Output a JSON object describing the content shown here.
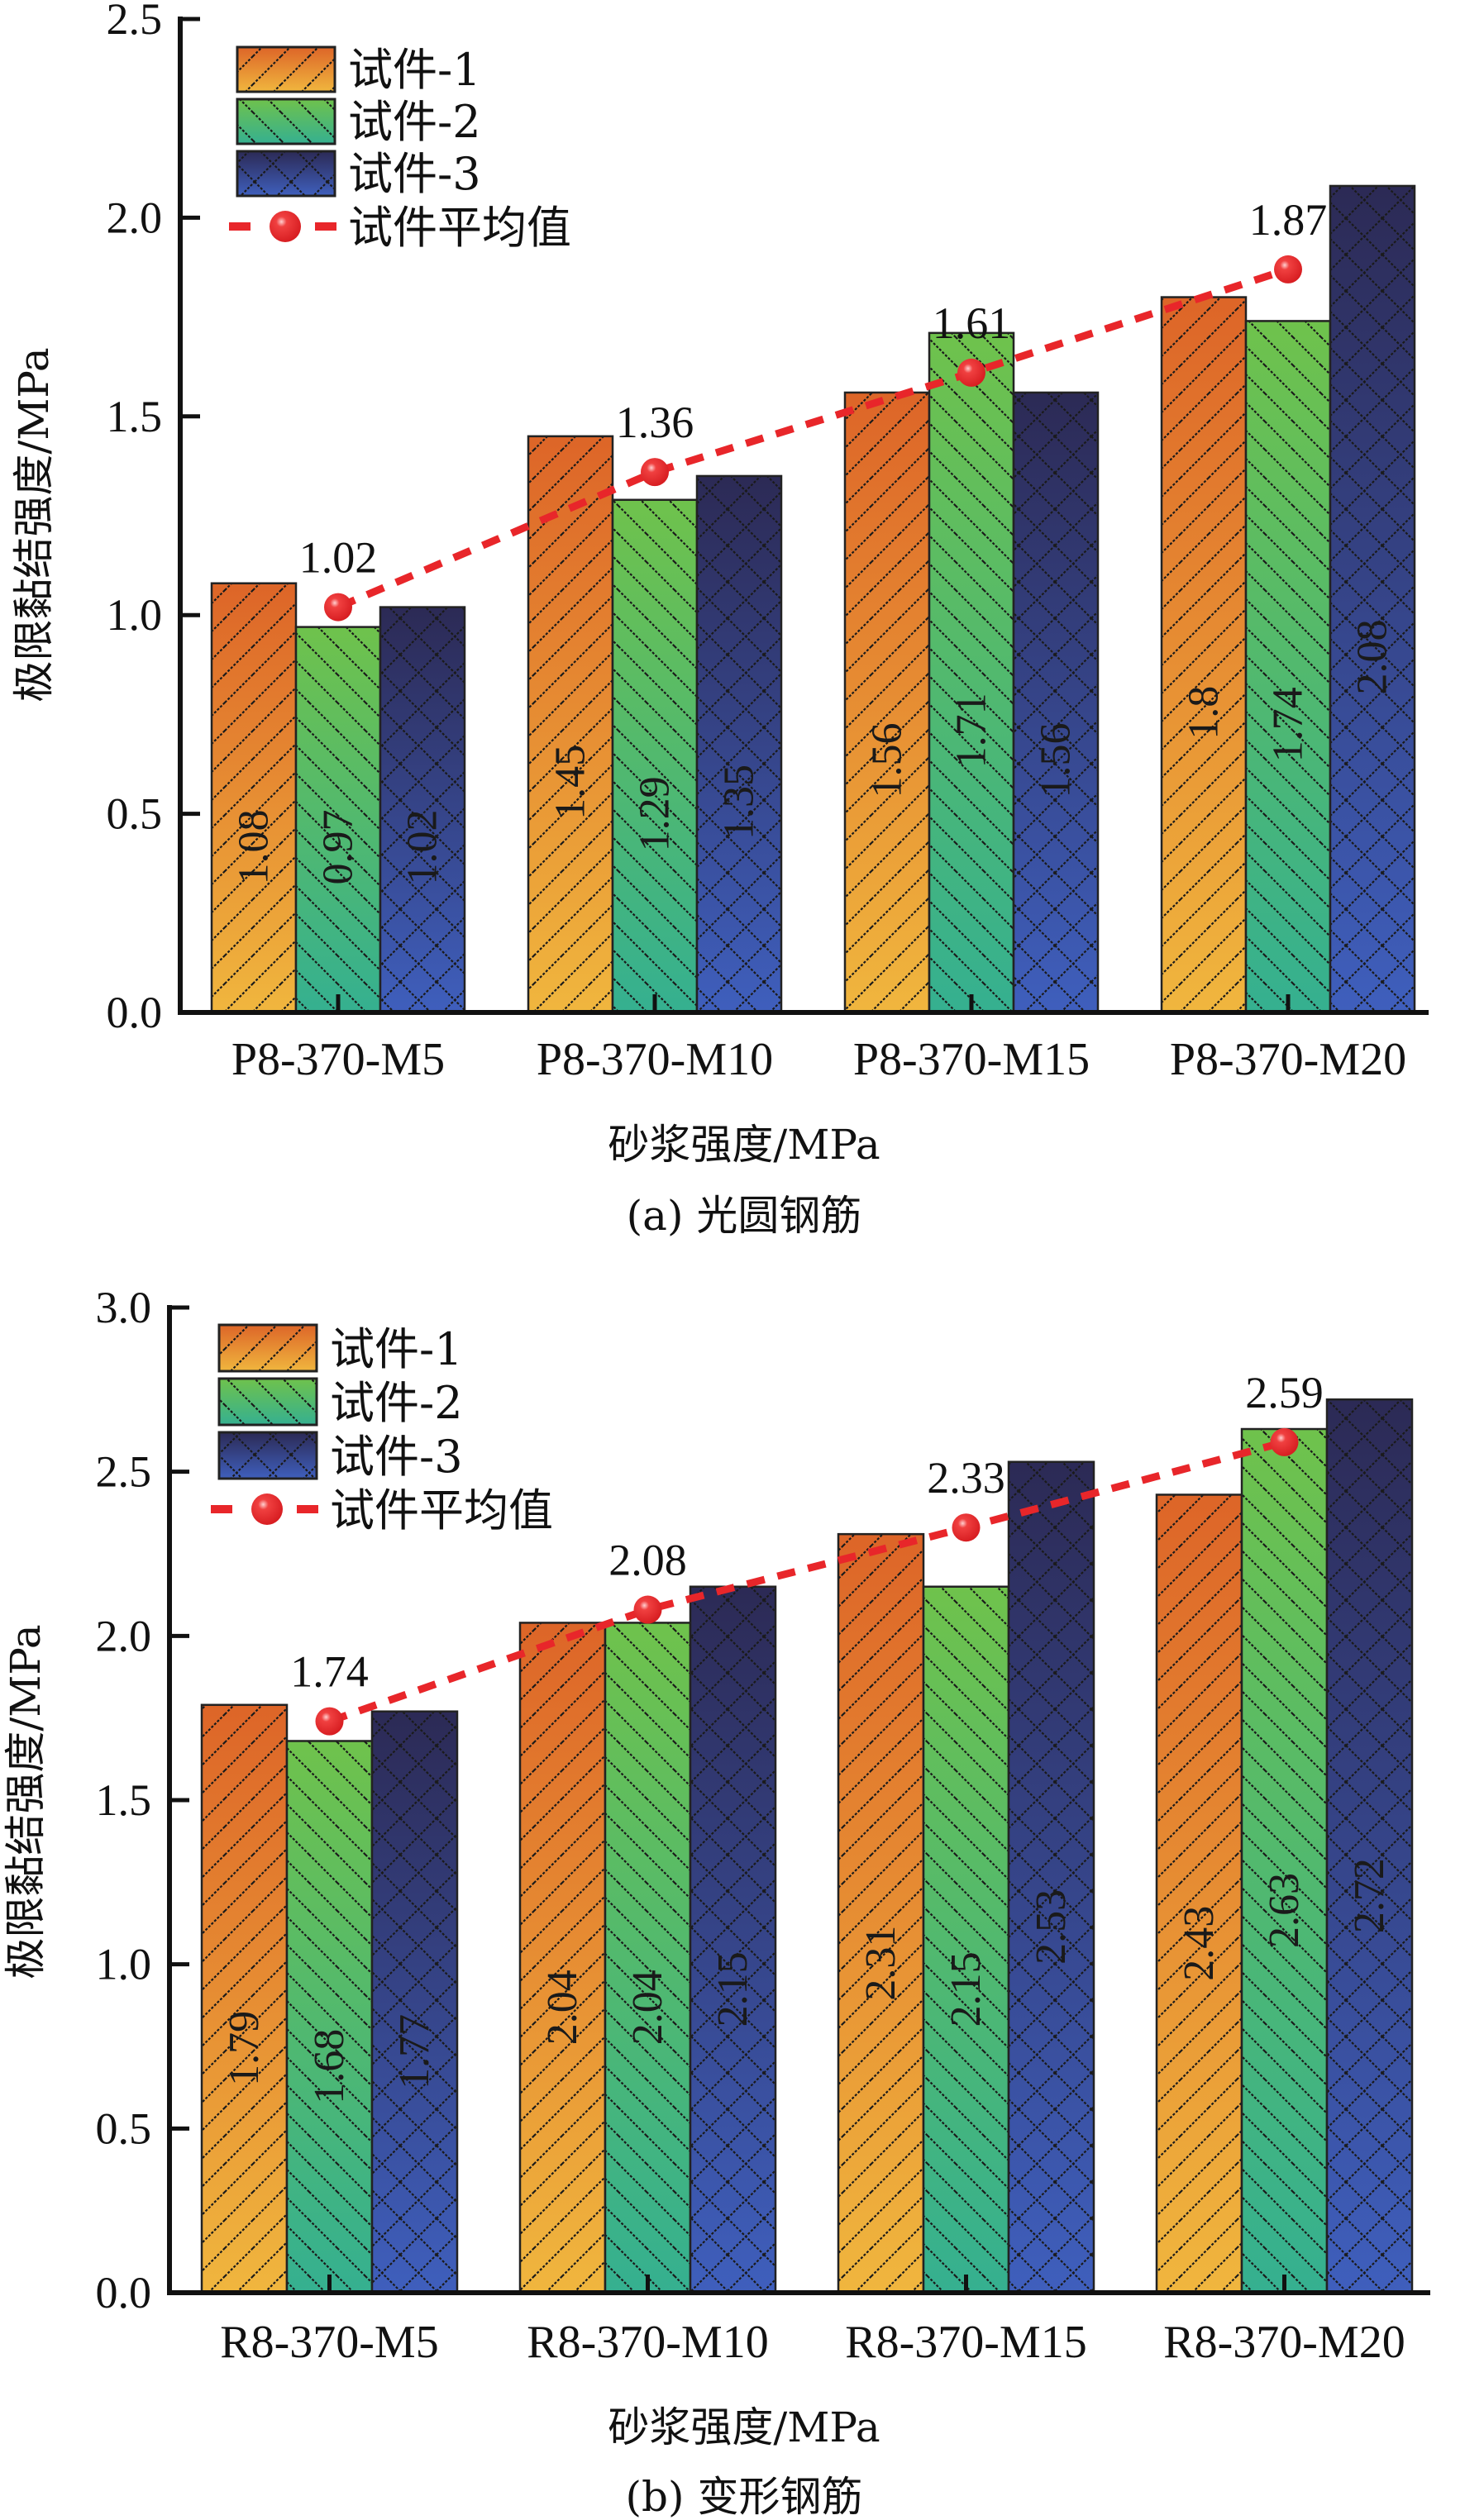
{
  "chart_data": [
    {
      "type": "bar",
      "panel": "a",
      "title": "",
      "caption": "(a) 光圆钢筋",
      "xlabel": "砂浆强度/MPa",
      "ylabel": "极限黏结强度/MPa",
      "ylim": [
        0,
        2.5
      ],
      "yticks": [
        0.0,
        0.5,
        1.0,
        1.5,
        2.0,
        2.5
      ],
      "ytick_labels": [
        "0.0",
        "0.5",
        "1.0",
        "1.5",
        "2.0",
        "2.5"
      ],
      "categories": [
        "P8-370-M5",
        "P8-370-M10",
        "P8-370-M15",
        "P8-370-M20"
      ],
      "series": [
        {
          "name": "试件-1",
          "values": [
            1.08,
            1.45,
            1.56,
            1.8
          ],
          "labels": [
            "1.08",
            "1.45",
            "1.56",
            "1.8"
          ]
        },
        {
          "name": "试件-2",
          "values": [
            0.97,
            1.29,
            1.71,
            1.74
          ],
          "labels": [
            "0.97",
            "1.29",
            "1.71",
            "1.74"
          ]
        },
        {
          "name": "试件-3",
          "values": [
            1.02,
            1.35,
            1.56,
            2.08
          ],
          "labels": [
            "1.02",
            "1.35",
            "1.56",
            "2.08"
          ]
        }
      ],
      "average": {
        "name": "试件平均值",
        "values": [
          1.02,
          1.36,
          1.61,
          1.87
        ],
        "labels": [
          "1.02",
          "1.36",
          "1.61",
          "1.87"
        ]
      },
      "legend_position": "top-left",
      "grid": false
    },
    {
      "type": "bar",
      "panel": "b",
      "title": "",
      "caption": "(b) 变形钢筋",
      "xlabel": "砂浆强度/MPa",
      "ylabel": "极限黏结强度/MPa",
      "ylim": [
        0,
        3.0
      ],
      "yticks": [
        0.0,
        0.5,
        1.0,
        1.5,
        2.0,
        2.5,
        3.0
      ],
      "ytick_labels": [
        "0.0",
        "0.5",
        "1.0",
        "1.5",
        "2.0",
        "2.5",
        "3.0"
      ],
      "categories": [
        "R8-370-M5",
        "R8-370-M10",
        "R8-370-M15",
        "R8-370-M20"
      ],
      "series": [
        {
          "name": "试件-1",
          "values": [
            1.79,
            2.04,
            2.31,
            2.43
          ],
          "labels": [
            "1.79",
            "2.04",
            "2.31",
            "2.43"
          ]
        },
        {
          "name": "试件-2",
          "values": [
            1.68,
            2.04,
            2.15,
            2.63
          ],
          "labels": [
            "1.68",
            "2.04",
            "2.15",
            "2.63"
          ]
        },
        {
          "name": "试件-3",
          "values": [
            1.77,
            2.15,
            2.53,
            2.72
          ],
          "labels": [
            "1.77",
            "2.15",
            "2.53",
            "2.72"
          ]
        }
      ],
      "average": {
        "name": "试件平均值",
        "values": [
          1.74,
          2.08,
          2.33,
          2.59
        ],
        "labels": [
          "1.74",
          "2.08",
          "2.33",
          "2.59"
        ]
      },
      "legend_position": "top-left",
      "grid": false
    }
  ],
  "colors": {
    "series1_top": "#dd6528",
    "series1_bottom": "#f0b63e",
    "series2_top": "#6fc24c",
    "series2_bottom": "#35b090",
    "series3_top": "#2c2a55",
    "series3_bottom": "#3f5fbd",
    "average": "#e8262a",
    "axis": "#111111"
  }
}
